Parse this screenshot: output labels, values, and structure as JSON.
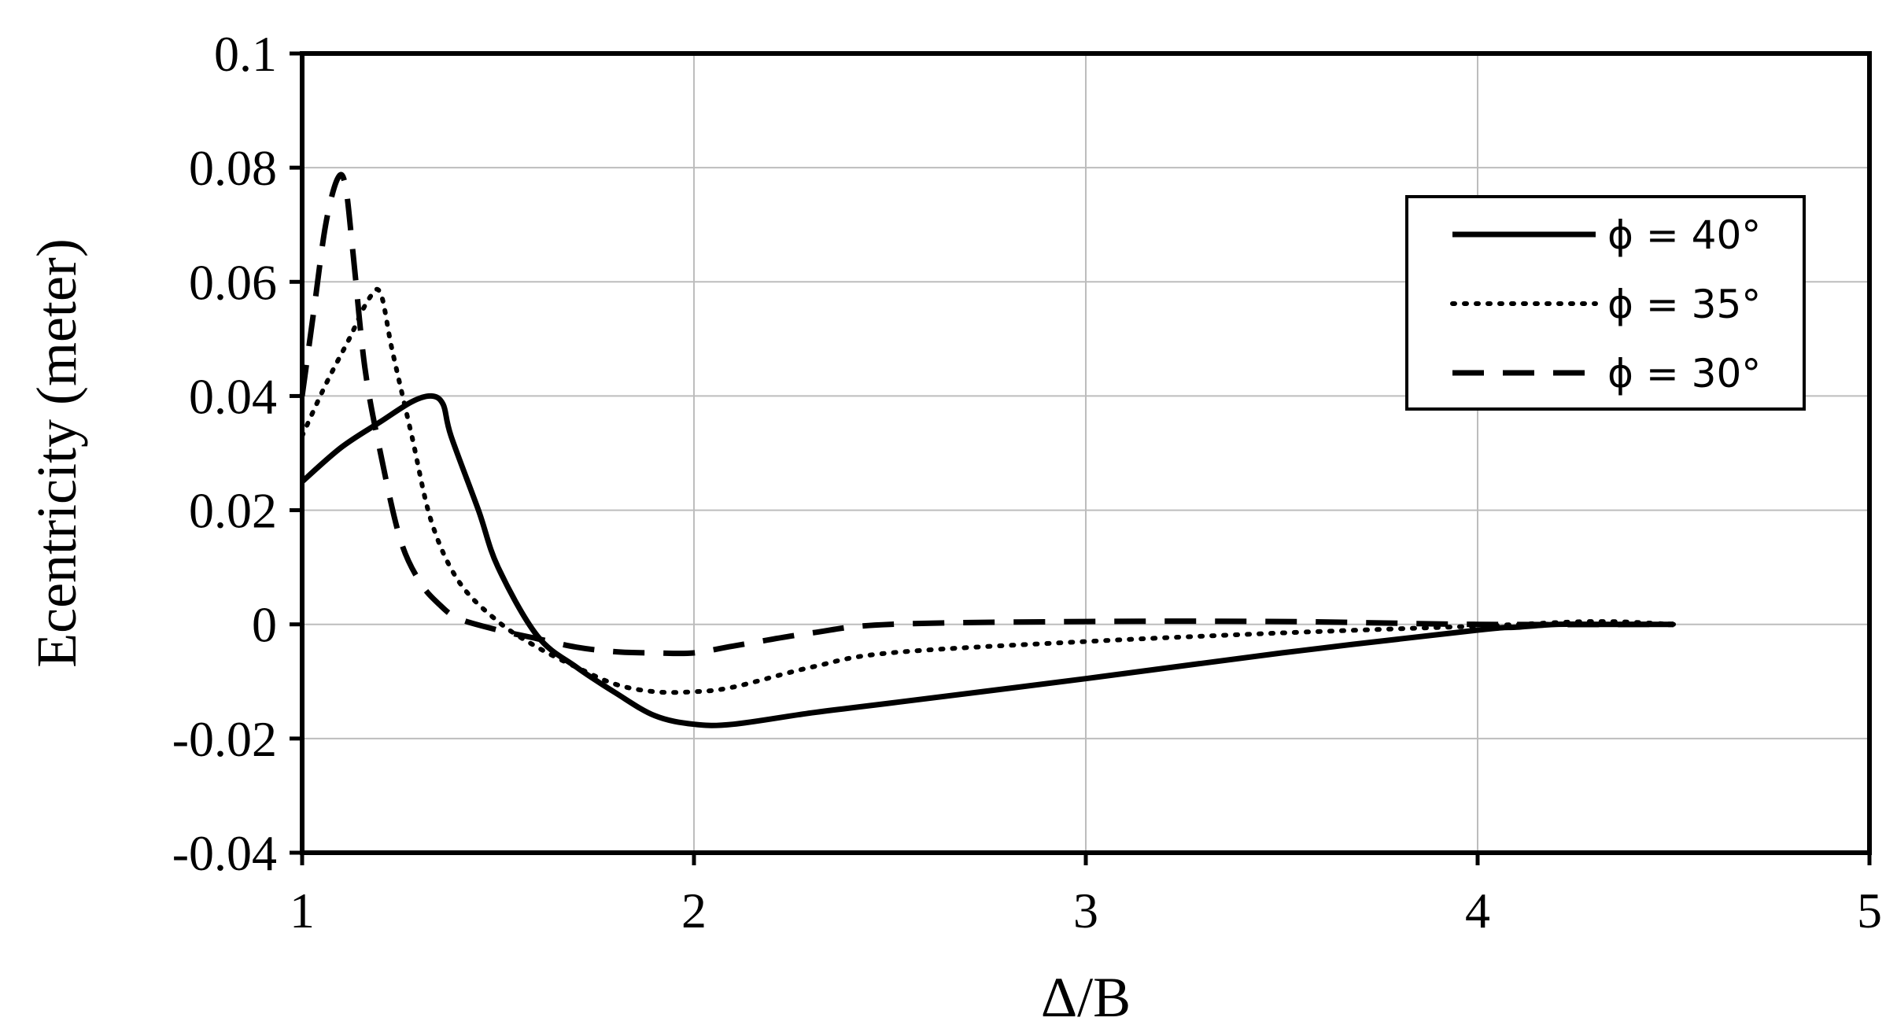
{
  "chart_data": {
    "type": "line",
    "title": "",
    "xlabel": "Δ/B",
    "ylabel": "Ecentricity (meter)",
    "xlim": [
      1,
      5
    ],
    "ylim": [
      -0.04,
      0.1
    ],
    "xticks": [
      1,
      2,
      3,
      4,
      5
    ],
    "xtick_labels": [
      "1",
      "2",
      "3",
      "4",
      "5"
    ],
    "yticks": [
      0.1,
      0.08,
      0.06,
      0.04,
      0.02,
      0,
      -0.02,
      -0.04
    ],
    "ytick_labels": [
      "0.1",
      "0.08",
      "0.06",
      "0.04",
      "0.02",
      "0",
      "-0.02",
      "-0.04"
    ],
    "grid": true,
    "legend_position": "top-right",
    "series": [
      {
        "name": "ϕ = 40°",
        "style": "solid",
        "color": "#000000",
        "x": [
          1.0,
          1.1,
          1.2,
          1.28,
          1.33,
          1.36,
          1.38,
          1.45,
          1.5,
          1.6,
          1.7,
          1.8,
          1.9,
          2.0,
          2.1,
          2.3,
          2.5,
          3.0,
          3.5,
          4.0,
          4.1,
          4.2,
          4.3,
          4.5
        ],
        "y": [
          0.025,
          0.031,
          0.0355,
          0.039,
          0.04,
          0.0385,
          0.033,
          0.02,
          0.01,
          -0.002,
          -0.0075,
          -0.012,
          -0.016,
          -0.0175,
          -0.0175,
          -0.0155,
          -0.0138,
          -0.0095,
          -0.005,
          -0.001,
          -0.0005,
          0.0,
          0.0,
          0.0
        ]
      },
      {
        "name": "ϕ = 35°",
        "style": "dotted",
        "color": "#000000",
        "x": [
          1.0,
          1.06,
          1.12,
          1.17,
          1.2,
          1.23,
          1.28,
          1.33,
          1.4,
          1.5,
          1.6,
          1.7,
          1.8,
          1.9,
          2.0,
          2.1,
          2.3,
          2.5,
          3.0,
          3.5,
          4.0,
          4.3,
          4.5
        ],
        "y": [
          0.033,
          0.042,
          0.05,
          0.057,
          0.058,
          0.048,
          0.033,
          0.018,
          0.0075,
          0.0005,
          -0.004,
          -0.0075,
          -0.0105,
          -0.0118,
          -0.0118,
          -0.011,
          -0.0075,
          -0.005,
          -0.003,
          -0.0015,
          -0.0003,
          0.0005,
          0.0
        ]
      },
      {
        "name": "ϕ = 30°",
        "style": "dashed",
        "color": "#000000",
        "x": [
          1.0,
          1.03,
          1.06,
          1.09,
          1.11,
          1.13,
          1.16,
          1.2,
          1.25,
          1.3,
          1.35,
          1.4,
          1.5,
          1.6,
          1.7,
          1.8,
          1.9,
          2.0,
          2.1,
          2.3,
          2.5,
          3.0,
          3.5,
          4.0,
          4.5
        ],
        "y": [
          0.04,
          0.055,
          0.07,
          0.078,
          0.077,
          0.065,
          0.045,
          0.03,
          0.015,
          0.0075,
          0.0035,
          0.001,
          -0.001,
          -0.0025,
          -0.004,
          -0.0048,
          -0.005,
          -0.005,
          -0.0038,
          -0.0015,
          0.0,
          0.0005,
          0.0005,
          0.0,
          0.0
        ]
      }
    ]
  }
}
